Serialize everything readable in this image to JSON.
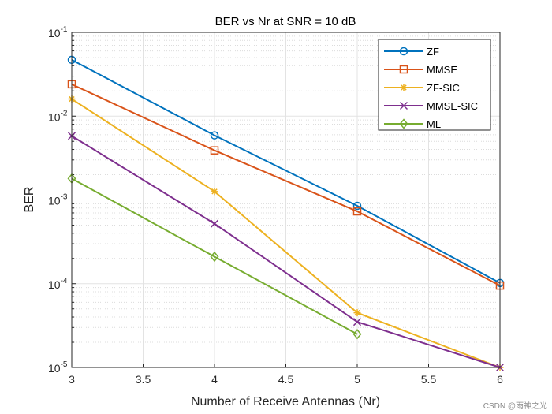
{
  "chart_data": {
    "type": "line",
    "title": "BER vs Nr at SNR = 10 dB",
    "xlabel": "Number of Receive Antennas (Nr)",
    "ylabel": "BER",
    "xlim": [
      3,
      6
    ],
    "ylim": [
      1e-05,
      0.1
    ],
    "yscale": "log",
    "grid": true,
    "minor_grid": true,
    "legend_position": "top-right",
    "x_ticks": [
      "3",
      "3.5",
      "4",
      "4.5",
      "5",
      "5.5",
      "6"
    ],
    "y_ticks": [
      {
        "base": "10",
        "exp": "-5"
      },
      {
        "base": "10",
        "exp": "-4"
      },
      {
        "base": "10",
        "exp": "-3"
      },
      {
        "base": "10",
        "exp": "-2"
      },
      {
        "base": "10",
        "exp": "-1"
      }
    ],
    "series": [
      {
        "name": "ZF",
        "color": "#0072BD",
        "marker": "circle",
        "x": [
          3,
          4,
          5,
          6
        ],
        "y": [
          0.047,
          0.0059,
          0.00085,
          0.000102
        ]
      },
      {
        "name": "MMSE",
        "color": "#D95319",
        "marker": "square",
        "x": [
          3,
          4,
          5,
          6
        ],
        "y": [
          0.024,
          0.0039,
          0.00073,
          9.5e-05
        ]
      },
      {
        "name": "ZF-SIC",
        "color": "#EDB120",
        "marker": "asterisk",
        "x": [
          3,
          4,
          5,
          6
        ],
        "y": [
          0.016,
          0.00126,
          4.5e-05,
          1e-05
        ]
      },
      {
        "name": "MMSE-SIC",
        "color": "#7E2F8E",
        "marker": "x",
        "x": [
          3,
          4,
          5,
          6
        ],
        "y": [
          0.0058,
          0.00052,
          3.5e-05,
          1e-05
        ]
      },
      {
        "name": "ML",
        "color": "#77AC30",
        "marker": "diamond",
        "x": [
          3,
          4,
          5
        ],
        "y": [
          0.0018,
          0.00021,
          2.5e-05
        ]
      }
    ]
  },
  "watermark": "CSDN @雨神之光"
}
